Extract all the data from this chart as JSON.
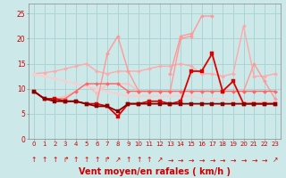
{
  "x": [
    0,
    1,
    2,
    3,
    4,
    5,
    6,
    7,
    8,
    9,
    10,
    11,
    12,
    13,
    14,
    15,
    16,
    17,
    18,
    19,
    20,
    21,
    22,
    23
  ],
  "background_color": "#cce8e8",
  "grid_color": "#aad4d4",
  "xlabel": "Vent moyen/en rafales ( km/h )",
  "ylim": [
    0,
    27
  ],
  "xlim": [
    -0.5,
    23.5
  ],
  "yticks": [
    0,
    5,
    10,
    15,
    20,
    25
  ],
  "series": [
    {
      "values": [
        13.0,
        13.2,
        13.5,
        14.0,
        14.5,
        15.0,
        13.5,
        13.0,
        13.5,
        13.5,
        13.5,
        14.0,
        14.5,
        14.5,
        15.0,
        14.5,
        13.0,
        13.0,
        12.5,
        13.0,
        22.5,
        12.5,
        12.5,
        13.0
      ],
      "color": "#ffaaaa",
      "lw": 1.0,
      "marker": "D",
      "ms": 2.0
    },
    {
      "values": [
        9.5,
        8.0,
        8.0,
        8.5,
        9.5,
        11.0,
        9.0,
        11.0,
        11.0,
        11.0,
        9.5,
        9.5,
        9.5,
        9.5,
        9.5,
        9.5,
        9.5,
        9.5,
        9.5,
        9.5,
        9.5,
        9.5,
        9.5,
        9.5
      ],
      "color": "#ffbbbb",
      "lw": 1.0,
      "marker": "D",
      "ms": 2.0
    },
    {
      "values": [
        13.0,
        12.5,
        12.0,
        11.5,
        11.0,
        10.5,
        10.0,
        9.5,
        9.0,
        8.5,
        8.5,
        8.5,
        8.5,
        8.5,
        8.5,
        8.5,
        8.0,
        8.0,
        8.0,
        7.5,
        7.5,
        7.5,
        7.5,
        7.5
      ],
      "color": "#ffcccc",
      "lw": 1.0,
      "marker": "D",
      "ms": 2.0
    },
    {
      "values": [
        null,
        null,
        null,
        null,
        null,
        null,
        7.0,
        17.0,
        20.5,
        13.5,
        9.5,
        9.5,
        9.5,
        9.5,
        20.0,
        20.5,
        24.5,
        24.5,
        null,
        null,
        null,
        null,
        null,
        null
      ],
      "color": "#ff9999",
      "lw": 1.0,
      "marker": "D",
      "ms": 2.0
    },
    {
      "values": [
        null,
        null,
        null,
        null,
        null,
        null,
        null,
        null,
        null,
        null,
        null,
        null,
        null,
        13.0,
        20.5,
        21.0,
        null,
        null,
        null,
        null,
        9.5,
        15.0,
        11.5,
        8.0
      ],
      "color": "#ff9999",
      "lw": 1.0,
      "marker": "D",
      "ms": 2.0
    },
    {
      "values": [
        9.5,
        8.0,
        8.0,
        8.0,
        9.5,
        11.0,
        11.0,
        11.0,
        11.0,
        9.5,
        9.5,
        9.5,
        9.5,
        9.5,
        9.5,
        9.5,
        9.5,
        9.5,
        9.5,
        9.5,
        9.5,
        9.5,
        9.5,
        9.5
      ],
      "color": "#ff6666",
      "lw": 1.0,
      "marker": "D",
      "ms": 2.0
    },
    {
      "values": [
        9.5,
        8.0,
        8.0,
        7.5,
        7.5,
        7.0,
        7.0,
        6.5,
        4.5,
        7.0,
        7.0,
        7.5,
        7.5,
        7.0,
        7.5,
        13.5,
        13.5,
        17.0,
        9.5,
        11.5,
        7.0,
        7.0,
        7.0,
        7.0
      ],
      "color": "#dd0000",
      "lw": 1.3,
      "marker": "s",
      "ms": 2.5
    },
    {
      "values": [
        9.5,
        8.0,
        7.5,
        7.5,
        7.5,
        7.0,
        6.5,
        6.5,
        5.5,
        7.0,
        7.0,
        7.0,
        7.0,
        7.0,
        7.0,
        7.0,
        7.0,
        7.0,
        7.0,
        7.0,
        7.0,
        7.0,
        7.0,
        7.0
      ],
      "color": "#880000",
      "lw": 1.3,
      "marker": "s",
      "ms": 2.5
    }
  ],
  "arrows": [
    [
      0,
      "↑"
    ],
    [
      1,
      "↑"
    ],
    [
      2,
      "↑"
    ],
    [
      3,
      "↱"
    ],
    [
      4,
      "↑"
    ],
    [
      5,
      "↑"
    ],
    [
      6,
      "↑"
    ],
    [
      7,
      "↱"
    ],
    [
      8,
      "↗"
    ],
    [
      9,
      "↑"
    ],
    [
      10,
      "↑"
    ],
    [
      11,
      "↑"
    ],
    [
      12,
      "↗"
    ],
    [
      13,
      "→"
    ],
    [
      14,
      "→"
    ],
    [
      15,
      "→"
    ],
    [
      16,
      "→"
    ],
    [
      17,
      "→"
    ],
    [
      18,
      "→"
    ],
    [
      19,
      "→"
    ],
    [
      20,
      "→"
    ],
    [
      21,
      "→"
    ],
    [
      22,
      "→"
    ],
    [
      23,
      "↗"
    ]
  ]
}
